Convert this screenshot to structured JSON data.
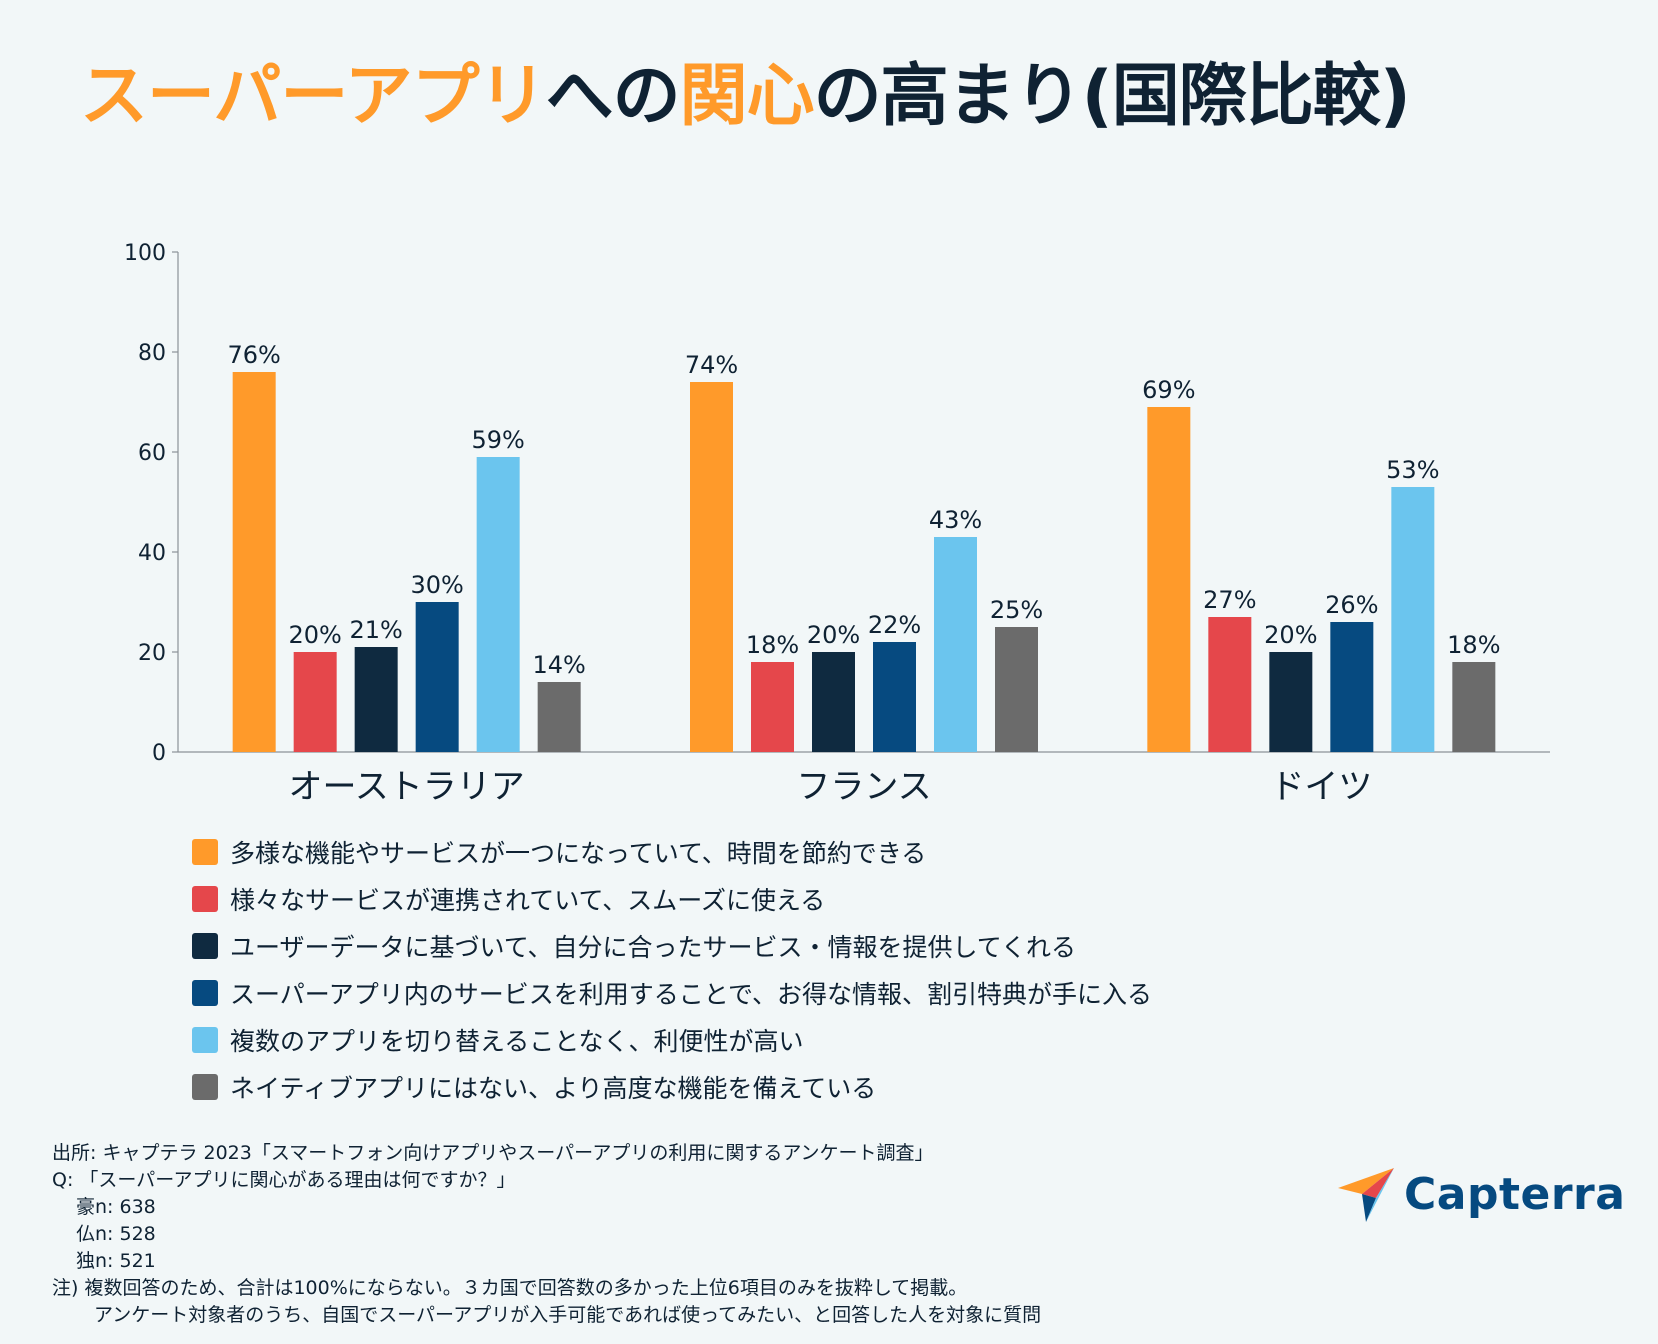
{
  "title": {
    "part1": "スーパーアプリ",
    "part2": "への",
    "part3": "関心",
    "part4": "の高まり(国際比較)"
  },
  "colors": {
    "orange": "#ff9a2a",
    "red": "#e5474b",
    "dark_navy": "#0f2a40",
    "navy": "#064a80",
    "light_blue": "#6bc5ee",
    "gray": "#6b6b6b"
  },
  "chart_data": {
    "type": "bar",
    "categories": [
      "オーストラリア",
      "フランス",
      "ドイツ"
    ],
    "ylim": [
      0,
      100
    ],
    "yticks": [
      0,
      20,
      40,
      60,
      80,
      100
    ],
    "series": [
      {
        "name": "多様な機能やサービスが一つになっていて、時間を節約できる",
        "values": [
          76,
          74,
          69
        ],
        "labels": [
          "76%",
          "74%",
          "69%"
        ],
        "color": "#ff9a2a"
      },
      {
        "name": "様々なサービスが連携されていて、スムーズに使える",
        "values": [
          20,
          18,
          27
        ],
        "labels": [
          "20%",
          "18%",
          "27%"
        ],
        "color": "#e5474b"
      },
      {
        "name": "ユーザーデータに基づいて、自分に合ったサービス・情報を提供してくれる",
        "values": [
          21,
          20,
          20
        ],
        "labels": [
          "21%",
          "20%",
          "20%"
        ],
        "color": "#0f2a40"
      },
      {
        "name": "スーパーアプリ内のサービスを利用することで、お得な情報、割引特典が手に入る",
        "values": [
          30,
          22,
          26
        ],
        "labels": [
          "30%",
          "22%",
          "26%"
        ],
        "color": "#064a80"
      },
      {
        "name": "複数のアプリを切り替えることなく、利便性が高い",
        "values": [
          59,
          43,
          53
        ],
        "labels": [
          "59%",
          "43%",
          "53%"
        ],
        "color": "#6bc5ee"
      },
      {
        "name": "ネイティブアプリにはない、より高度な機能を備えている",
        "values": [
          14,
          25,
          18
        ],
        "labels": [
          "14%",
          "25%",
          "18%"
        ],
        "color": "#6b6b6b"
      }
    ],
    "legend_position": "bottom"
  },
  "footnotes": {
    "source": "出所: キャプテラ 2023「スマートフォン向けアプリやスーパーアプリの利用に関するアンケート調査」",
    "question": "Q: 「スーパーアプリに関心がある理由は何ですか？」",
    "n_au": "豪n: 638",
    "n_fr": "仏n: 528",
    "n_de": "独n: 521",
    "note1": "注) 複数回答のため、合計は100%にならない。３カ国で回答数の多かった上位6項目のみを抜粋して掲載。",
    "note2": "アンケート対象者のうち、自国でスーパーアプリが入手可能であれば使ってみたい、と回答した人を対象に質問"
  },
  "logo": {
    "text": "Capterra"
  }
}
